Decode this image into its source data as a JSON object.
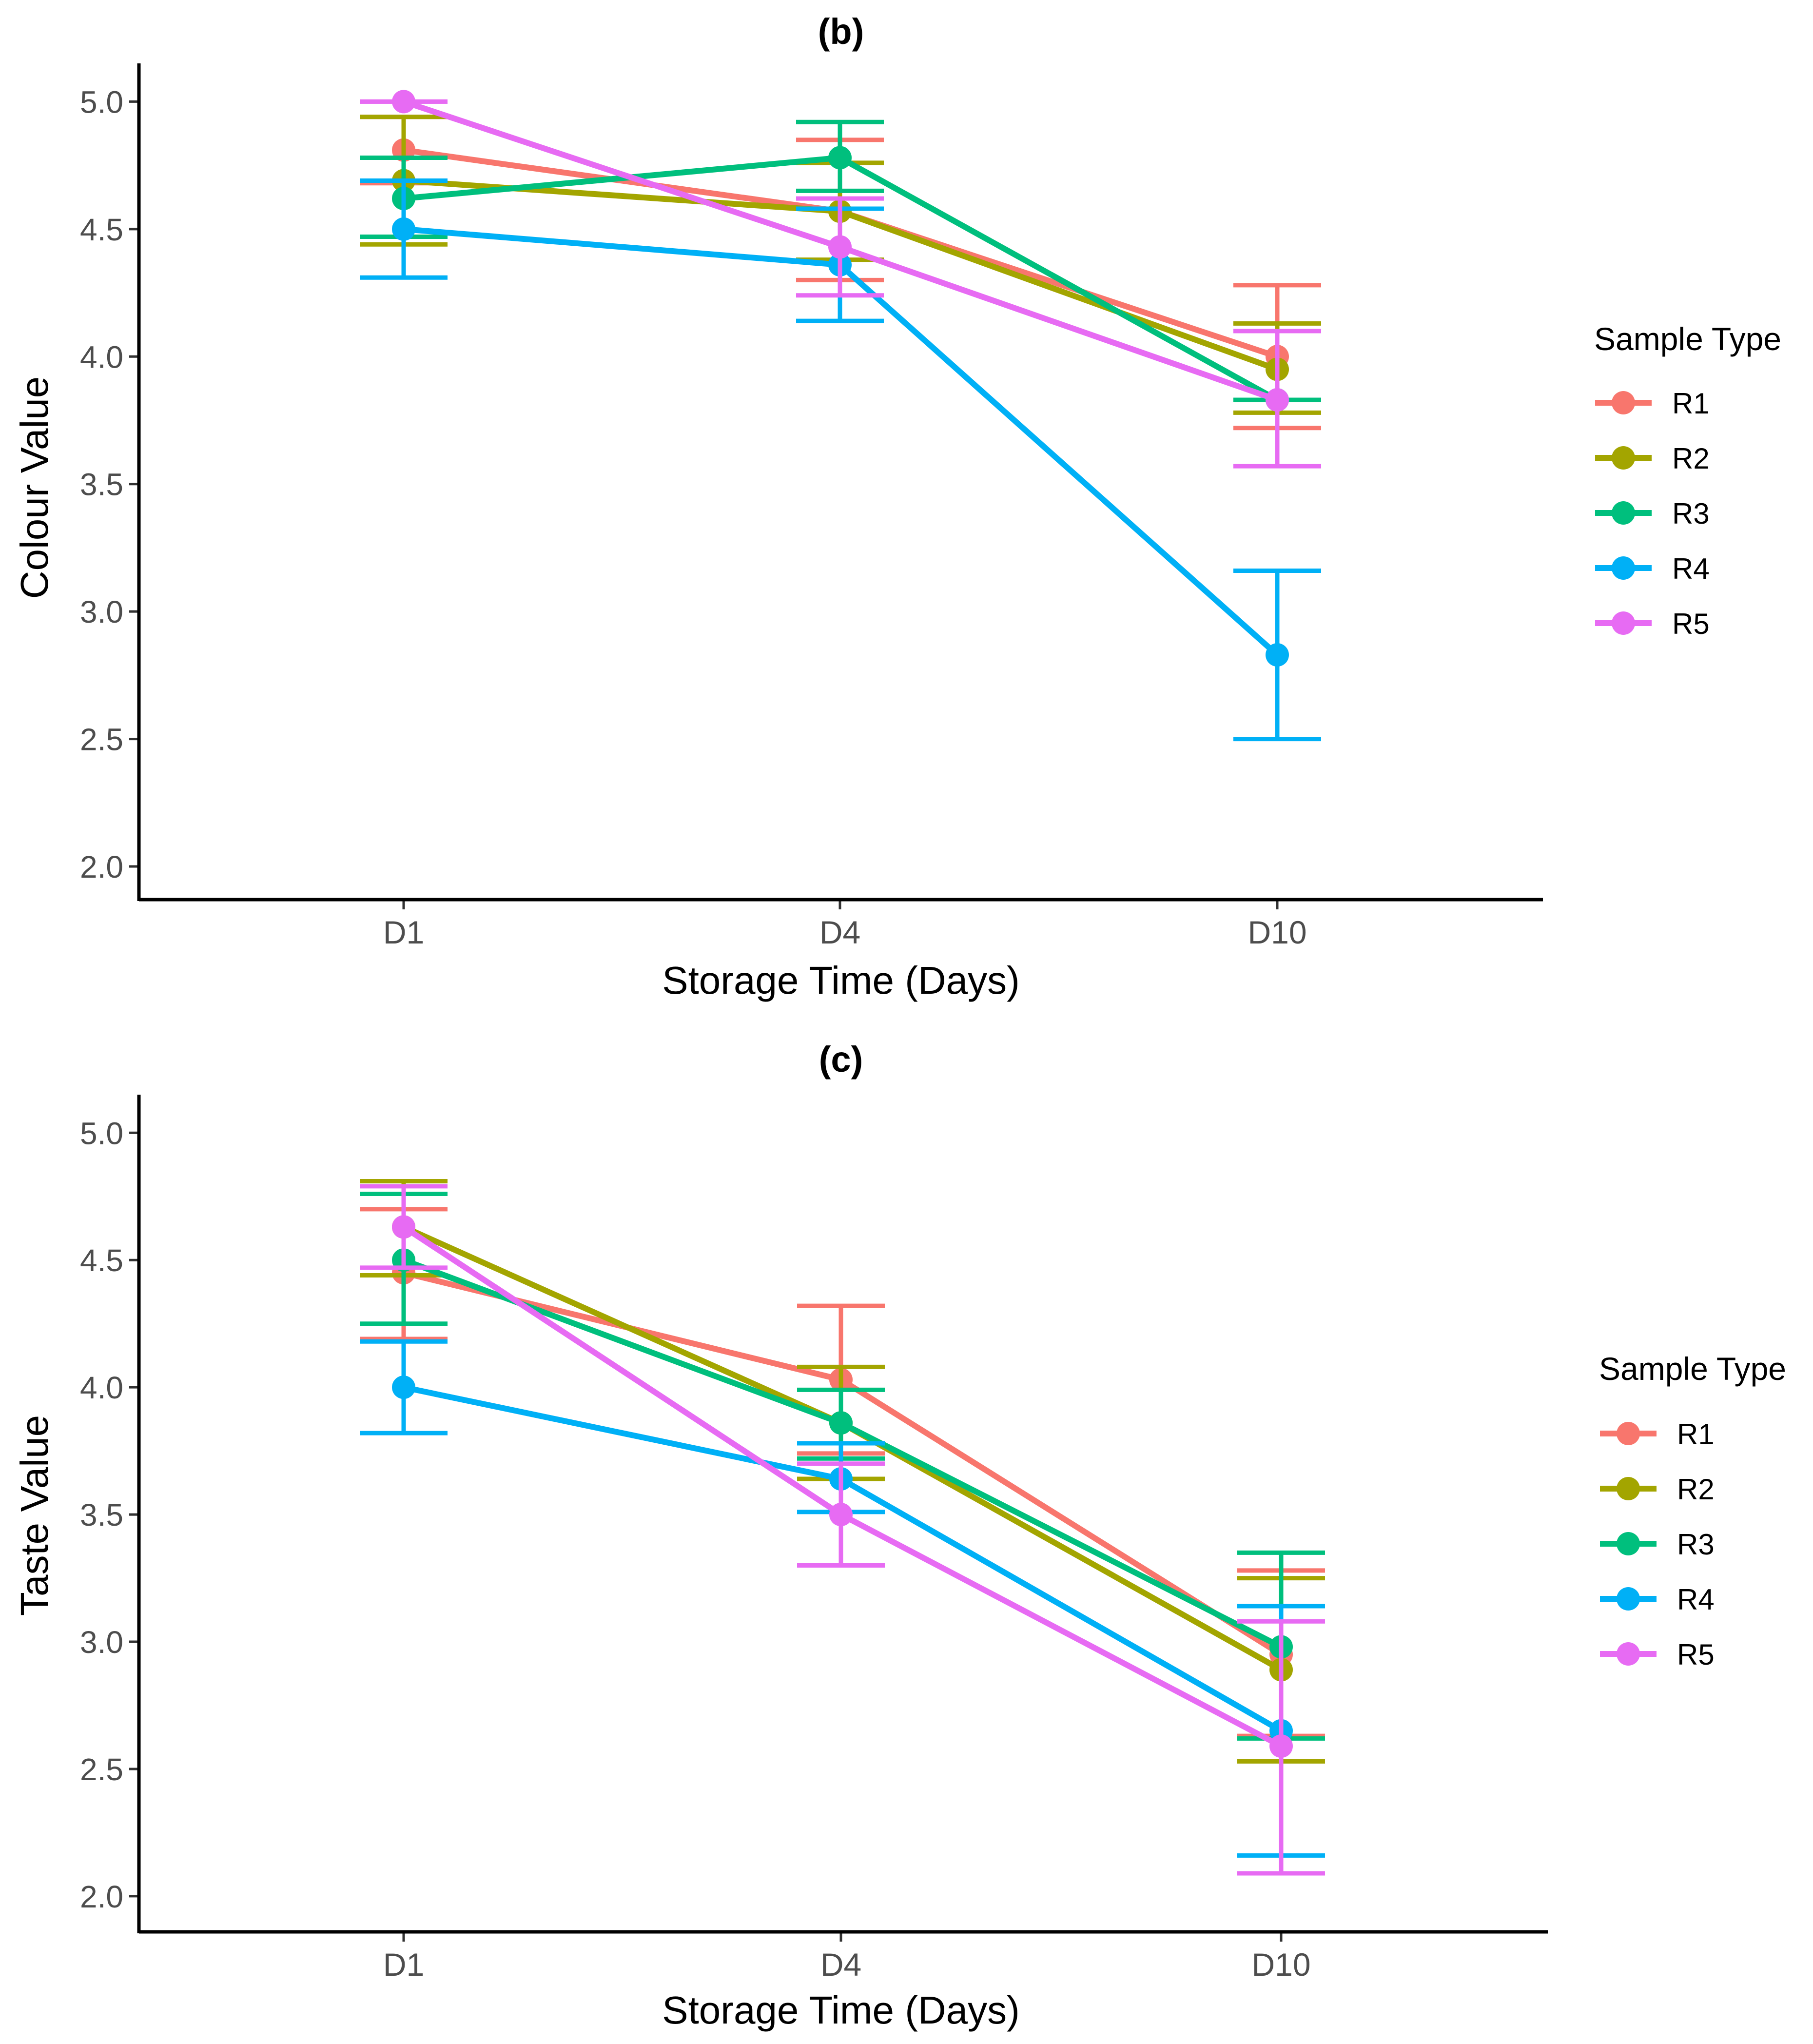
{
  "chart_data": [
    {
      "type": "line",
      "title": "(b)",
      "xlabel": "Storage Time (Days)",
      "ylabel": "Colour Value",
      "categories": [
        "D1",
        "D4",
        "D10"
      ],
      "ylim": [
        1.87,
        5.15
      ],
      "yticks": [
        "2.0",
        "2.5",
        "3.0",
        "3.5",
        "4.0",
        "4.5",
        "5.0"
      ],
      "grid": false,
      "legend": {
        "title": "Sample Type",
        "position": "right"
      },
      "series": [
        {
          "name": "R1",
          "color": "#F8766D",
          "values": [
            4.81,
            4.57,
            4.0
          ],
          "err_low": [
            4.68,
            4.3,
            3.72
          ],
          "err_high": [
            4.94,
            4.85,
            4.28
          ]
        },
        {
          "name": "R2",
          "color": "#A3A500",
          "values": [
            4.69,
            4.57,
            3.95
          ],
          "err_low": [
            4.44,
            4.38,
            3.78
          ],
          "err_high": [
            4.94,
            4.76,
            4.13
          ]
        },
        {
          "name": "R3",
          "color": "#00BF7D",
          "values": [
            4.62,
            4.78,
            3.83
          ],
          "err_low": [
            4.47,
            4.65,
            3.83
          ],
          "err_high": [
            4.78,
            4.92,
            3.83
          ]
        },
        {
          "name": "R4",
          "color": "#00B0F6",
          "values": [
            4.5,
            4.36,
            2.83
          ],
          "err_low": [
            4.31,
            4.14,
            2.5
          ],
          "err_high": [
            4.69,
            4.58,
            3.16
          ]
        },
        {
          "name": "R5",
          "color": "#E76BF3",
          "values": [
            5.0,
            4.43,
            3.83
          ],
          "err_low": [
            5.0,
            4.24,
            3.57
          ],
          "err_high": [
            5.0,
            4.62,
            4.1
          ]
        }
      ]
    },
    {
      "type": "line",
      "title": "(c)",
      "xlabel": "Storage Time (Days)",
      "ylabel": "Taste Value",
      "categories": [
        "D1",
        "D4",
        "D10"
      ],
      "ylim": [
        1.86,
        5.15
      ],
      "yticks": [
        "2.0",
        "2.5",
        "3.0",
        "3.5",
        "4.0",
        "4.5",
        "5.0"
      ],
      "grid": false,
      "legend": {
        "title": "Sample Type",
        "position": "right"
      },
      "series": [
        {
          "name": "R1",
          "color": "#F8766D",
          "values": [
            4.45,
            4.03,
            2.95
          ],
          "err_low": [
            4.19,
            3.74,
            2.63
          ],
          "err_high": [
            4.7,
            4.32,
            3.28
          ]
        },
        {
          "name": "R2",
          "color": "#A3A500",
          "values": [
            4.63,
            3.86,
            2.89
          ],
          "err_low": [
            4.44,
            3.64,
            2.53
          ],
          "err_high": [
            4.81,
            4.08,
            3.25
          ]
        },
        {
          "name": "R3",
          "color": "#00BF7D",
          "values": [
            4.5,
            3.86,
            2.98
          ],
          "err_low": [
            4.25,
            3.72,
            2.62
          ],
          "err_high": [
            4.76,
            3.99,
            3.35
          ]
        },
        {
          "name": "R4",
          "color": "#00B0F6",
          "values": [
            4.0,
            3.64,
            2.65
          ],
          "err_low": [
            3.82,
            3.51,
            2.16
          ],
          "err_high": [
            4.18,
            3.78,
            3.14
          ]
        },
        {
          "name": "R5",
          "color": "#E76BF3",
          "values": [
            4.63,
            3.5,
            2.59
          ],
          "err_low": [
            4.47,
            3.3,
            2.09
          ],
          "err_high": [
            4.79,
            3.7,
            3.08
          ]
        }
      ]
    }
  ]
}
